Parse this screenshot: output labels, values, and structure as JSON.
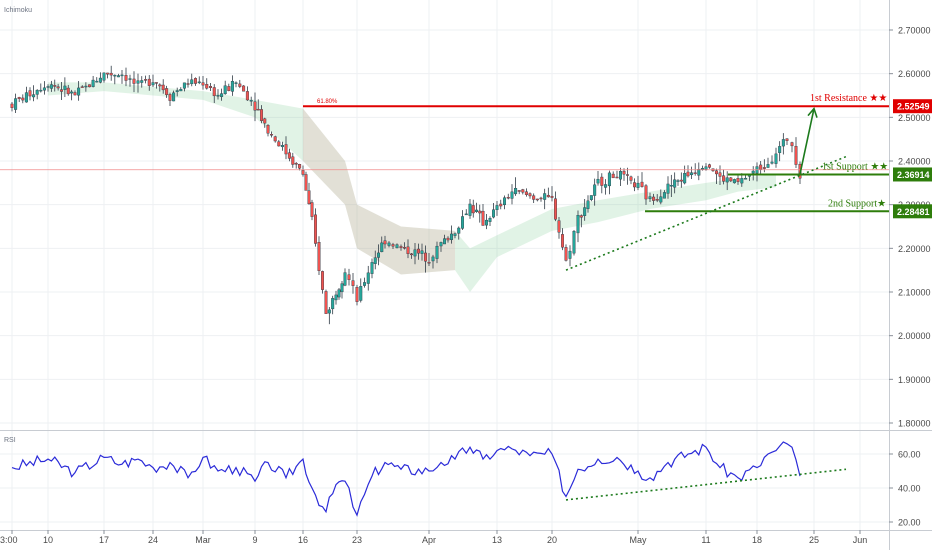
{
  "chart_data": [
    {
      "type": "candlestick",
      "indicator": "Ichimoku",
      "ylim": [
        1.75,
        2.78
      ],
      "y_ticks": [
        "2.70000",
        "2.60000",
        "2.50000",
        "2.40000",
        "2.30000",
        "2.20000",
        "2.10000",
        "2.00000",
        "1.90000",
        "1.80000"
      ],
      "price_path": [
        [
          "Feb 10",
          2.53
        ],
        [
          "Feb 12",
          2.58
        ],
        [
          "Feb 14",
          2.55
        ],
        [
          "Feb 17",
          2.6
        ],
        [
          "Feb 19",
          2.6
        ],
        [
          "Feb 21",
          2.57
        ],
        [
          "Feb 24",
          2.59
        ],
        [
          "Feb 26",
          2.55
        ],
        [
          "Feb 28",
          2.58
        ],
        [
          "Mar 2",
          2.58
        ],
        [
          "Mar 4",
          2.55
        ],
        [
          "Mar 6",
          2.58
        ],
        [
          "Mar 9",
          2.53
        ],
        [
          "Mar 11",
          2.47
        ],
        [
          "Mar 13",
          2.42
        ],
        [
          "Mar 16",
          2.37
        ],
        [
          "Mar 17",
          2.26
        ],
        [
          "Mar 18",
          2.05
        ],
        [
          "Mar 19",
          2.1
        ],
        [
          "Mar 20",
          2.15
        ],
        [
          "Mar 23",
          2.08
        ],
        [
          "Mar 25",
          2.17
        ],
        [
          "Mar 27",
          2.22
        ],
        [
          "Mar 30",
          2.2
        ],
        [
          "Apr 1",
          2.18
        ],
        [
          "Apr 3",
          2.21
        ],
        [
          "Apr 6",
          2.24
        ],
        [
          "Apr 8",
          2.3
        ],
        [
          "Apr 10",
          2.26
        ],
        [
          "Apr 13",
          2.29
        ],
        [
          "Apr 15",
          2.33
        ],
        [
          "Apr 17",
          2.32
        ],
        [
          "Apr 20",
          2.31
        ],
        [
          "Apr 21",
          2.17
        ],
        [
          "Apr 23",
          2.27
        ],
        [
          "Apr 27",
          2.35
        ],
        [
          "Apr 29",
          2.37
        ],
        [
          "May 1",
          2.34
        ],
        [
          "May 4",
          2.31
        ],
        [
          "May 6",
          2.34
        ],
        [
          "May 8",
          2.37
        ],
        [
          "May 11",
          2.4
        ],
        [
          "May 13",
          2.36
        ],
        [
          "May 15",
          2.35
        ],
        [
          "May 18",
          2.38
        ],
        [
          "May 19",
          2.4
        ],
        [
          "May 20",
          2.42
        ],
        [
          "May 21",
          2.45
        ],
        [
          "May 22",
          2.44
        ],
        [
          "May 22b",
          2.37
        ]
      ],
      "cloud": [
        [
          "Feb 12",
          2.58,
          2.55
        ],
        [
          "Feb 17",
          2.58,
          2.56
        ],
        [
          "Feb 24",
          2.57,
          2.55
        ],
        [
          "Mar 2",
          2.56,
          2.54
        ],
        [
          "Mar 9",
          2.54,
          2.5
        ],
        [
          "Mar 16",
          2.52,
          2.4
        ],
        [
          "Mar 20",
          2.4,
          2.3
        ],
        [
          "Mar 23",
          2.3,
          2.2
        ],
        [
          "Mar 30",
          2.25,
          2.14
        ],
        [
          "Apr 6",
          2.24,
          2.15
        ],
        [
          "Apr 8",
          2.2,
          2.1
        ],
        [
          "Apr 13",
          2.23,
          2.18
        ],
        [
          "Apr 20",
          2.29,
          2.24
        ],
        [
          "Apr 27",
          2.31,
          2.26
        ],
        [
          "May 4",
          2.33,
          2.29
        ],
        [
          "May 11",
          2.35,
          2.31
        ],
        [
          "May 15",
          2.36,
          2.33
        ],
        [
          "May 20",
          2.37,
          2.34
        ]
      ],
      "annotations": {
        "resistance_label": "1st Resistance ★★",
        "resistance_value": "2.52549",
        "resistance_level": 2.52549,
        "fib_label": "61.80%",
        "support1_label": "1st Support ★★",
        "support1_value": "2.36914",
        "support1_level": 2.36914,
        "support2_label": "2nd Support★",
        "support2_value": "2.28481",
        "support2_level": 2.28481,
        "horizontal_line_level": 2.38
      },
      "trendline": {
        "from": [
          "Apr 21",
          2.15
        ],
        "to": [
          "May 29",
          2.41
        ]
      },
      "arrow": {
        "from": [
          "May 22b",
          2.37
        ],
        "to": [
          "May 25",
          2.52
        ]
      }
    },
    {
      "type": "line",
      "indicator": "RSI",
      "ylim": [
        17,
        72
      ],
      "y_ticks": [
        "60.00",
        "40.00",
        "20.00"
      ],
      "values": [
        [
          "Feb 10",
          52
        ],
        [
          "Feb 12",
          57
        ],
        [
          "Feb 14",
          49
        ],
        [
          "Feb 17",
          58
        ],
        [
          "Feb 19",
          54
        ],
        [
          "Feb 21",
          57
        ],
        [
          "Feb 24",
          52
        ],
        [
          "Feb 26",
          55
        ],
        [
          "Feb 28",
          46
        ],
        [
          "Mar 2",
          58
        ],
        [
          "Mar 4",
          50
        ],
        [
          "Mar 6",
          52
        ],
        [
          "Mar 9",
          44
        ],
        [
          "Mar 11",
          55
        ],
        [
          "Mar 13",
          46
        ],
        [
          "Mar 16",
          57
        ],
        [
          "Mar 17",
          40
        ],
        [
          "Mar 18",
          26
        ],
        [
          "Mar 19",
          42
        ],
        [
          "Mar 20",
          44
        ],
        [
          "Mar 23",
          24
        ],
        [
          "Mar 25",
          47
        ],
        [
          "Mar 27",
          55
        ],
        [
          "Mar 30",
          51
        ],
        [
          "Apr 1",
          50
        ],
        [
          "Apr 3",
          55
        ],
        [
          "Apr 6",
          57
        ],
        [
          "Apr 8",
          64
        ],
        [
          "Apr 10",
          57
        ],
        [
          "Apr 13",
          62
        ],
        [
          "Apr 15",
          63
        ],
        [
          "Apr 17",
          59
        ],
        [
          "Apr 20",
          60
        ],
        [
          "Apr 21",
          35
        ],
        [
          "Apr 23",
          51
        ],
        [
          "Apr 27",
          57
        ],
        [
          "Apr 29",
          58
        ],
        [
          "May 1",
          50
        ],
        [
          "May 4",
          46
        ],
        [
          "May 6",
          55
        ],
        [
          "May 8",
          60
        ],
        [
          "May 11",
          64
        ],
        [
          "May 13",
          52
        ],
        [
          "May 15",
          46
        ],
        [
          "May 18",
          52
        ],
        [
          "May 19",
          60
        ],
        [
          "May 20",
          62
        ],
        [
          "May 21",
          66
        ],
        [
          "May 22",
          64
        ],
        [
          "May 22b",
          47
        ]
      ],
      "trendline": {
        "from": [
          "Apr 21",
          33
        ],
        "to": [
          "May 29",
          51
        ]
      }
    }
  ],
  "x_axis": {
    "ticks": [
      [
        "Feb 10",
        "3:00"
      ],
      [
        "Feb 12",
        "10"
      ],
      [
        "Feb 17",
        "17"
      ],
      [
        "Feb 24",
        "24"
      ],
      [
        "Mar 2",
        "Mar"
      ],
      [
        "Mar 9",
        "9"
      ],
      [
        "Mar 16",
        "16"
      ],
      [
        "Mar 23",
        "23"
      ],
      [
        "Apr 1",
        "Apr"
      ],
      [
        "Apr 13",
        "13"
      ],
      [
        "Apr 20",
        "20"
      ],
      [
        "May 1",
        "May"
      ],
      [
        "May 11",
        "11"
      ],
      [
        "May 18",
        "18"
      ],
      [
        "May 25",
        "25"
      ],
      [
        "Jun 1",
        "Jun"
      ]
    ],
    "positions": {
      "Feb 5": 6,
      "Feb 10": 12,
      "Feb 12": 48,
      "Feb 14": 75,
      "Feb 17": 104,
      "Feb 19": 122,
      "Feb 21": 138,
      "Feb 24": 153,
      "Feb 26": 170,
      "Feb 28": 188,
      "Mar 2": 203,
      "Mar 4": 218,
      "Mar 6": 236,
      "Mar 9": 255,
      "Mar 11": 268,
      "Mar 13": 286,
      "Mar 16": 303,
      "Mar 17": 312,
      "Mar 18": 326,
      "Mar 19": 336,
      "Mar 20": 345,
      "Mar 23": 357,
      "Mar 25": 372,
      "Mar 27": 385,
      "Mar 30": 401,
      "Apr 1": 429,
      "Apr 3": 441,
      "Apr 6": 455,
      "Apr 8": 470,
      "Apr 10": 483,
      "Apr 13": 497,
      "Apr 15": 512,
      "Apr 17": 530,
      "Apr 20": 552,
      "Apr 21": 566,
      "Apr 23": 578,
      "Apr 27": 598,
      "Apr 29": 617,
      "May 1": 638,
      "May 4": 650,
      "May 6": 668,
      "May 8": 688,
      "May 11": 706,
      "May 13": 720,
      "May 15": 738,
      "May 18": 757,
      "May 19": 768,
      "May 20": 776,
      "May 21": 787,
      "May 22": 792,
      "May 22b": 800,
      "May 25": 814,
      "May 29": 846,
      "Jun 1": 860
    }
  },
  "colors": {
    "up": "#26a69a",
    "down": "#ef5350",
    "wick": "#2f3a45",
    "resistance": "#e00000",
    "support": "#2e7d0b",
    "rsi": "#2b2bd8",
    "trend": "#1c7a1c",
    "cloud": "rgba(120,200,140,0.22)",
    "cloud_red": "rgba(230,160,160,0.22)",
    "grid": "#eef0f3",
    "axis_text": "#4a4a4a",
    "fib": "#e00000"
  }
}
